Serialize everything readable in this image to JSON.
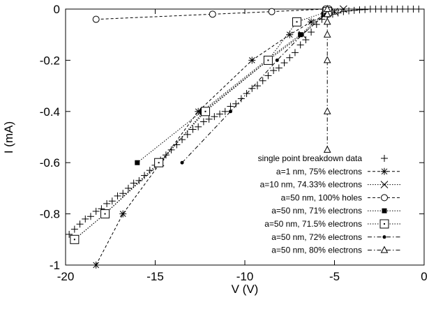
{
  "chart_data": {
    "type": "scatter",
    "xlabel": "V  (V)",
    "ylabel": "I  (mA)",
    "xlim": [
      -20,
      0
    ],
    "ylim": [
      -1,
      0
    ],
    "xticks": [
      -20,
      -15,
      -10,
      -5,
      0
    ],
    "yticks": [
      0,
      -0.2,
      -0.4,
      -0.6,
      -0.8,
      -1
    ],
    "xtick_labels": [
      "-20",
      "-15",
      "-10",
      "-5",
      "0"
    ],
    "ytick_labels": [
      "0",
      "-0.2",
      "-0.4",
      "-0.6",
      "-0.8",
      "-1"
    ],
    "grid": false,
    "legend_position": "bottom-right",
    "series": [
      {
        "name": "single point breakdown data",
        "marker": "plus",
        "line": "none",
        "x": [
          -19.8,
          -19.5,
          -19.2,
          -18.9,
          -18.6,
          -18.3,
          -18.0,
          -17.7,
          -17.4,
          -17.1,
          -16.8,
          -16.5,
          -16.2,
          -15.9,
          -15.6,
          -15.3,
          -15.0,
          -14.7,
          -14.4,
          -14.1,
          -13.8,
          -13.5,
          -13.2,
          -12.9,
          -12.6,
          -12.3,
          -12.0,
          -11.7,
          -11.4,
          -11.1,
          -10.8,
          -10.5,
          -10.2,
          -9.9,
          -9.6,
          -9.3,
          -9.0,
          -8.7,
          -8.4,
          -8.1,
          -7.8,
          -7.5,
          -7.2,
          -6.9,
          -6.6,
          -6.3,
          -6.0,
          -5.7,
          -5.4,
          -5.1,
          -4.8,
          -4.5,
          -4.2,
          -3.9,
          -3.6,
          -3.3,
          -3.0,
          -2.7,
          -2.4,
          -2.1,
          -1.8,
          -1.5,
          -1.2,
          -0.9,
          -0.6,
          -0.3
        ],
        "y": [
          -0.88,
          -0.86,
          -0.84,
          -0.82,
          -0.81,
          -0.79,
          -0.78,
          -0.76,
          -0.75,
          -0.73,
          -0.72,
          -0.7,
          -0.68,
          -0.67,
          -0.65,
          -0.63,
          -0.61,
          -0.59,
          -0.57,
          -0.55,
          -0.53,
          -0.51,
          -0.49,
          -0.47,
          -0.46,
          -0.44,
          -0.43,
          -0.42,
          -0.41,
          -0.4,
          -0.38,
          -0.37,
          -0.35,
          -0.33,
          -0.31,
          -0.3,
          -0.28,
          -0.26,
          -0.24,
          -0.23,
          -0.21,
          -0.19,
          -0.17,
          -0.14,
          -0.12,
          -0.09,
          -0.06,
          -0.04,
          -0.03,
          -0.02,
          -0.015,
          -0.01,
          -0.007,
          -0.005,
          -0.003,
          -0.002,
          0,
          0,
          0,
          0,
          0,
          0,
          0,
          0,
          0,
          0
        ]
      },
      {
        "name": "a=1 nm, 75% electrons",
        "marker": "star",
        "line": "dashed",
        "x": [
          -18.3,
          -16.8,
          -12.6,
          -9.6,
          -7.5,
          -6.3,
          -5.4
        ],
        "y": [
          -1.0,
          -0.8,
          -0.4,
          -0.2,
          -0.1,
          -0.05,
          -0.02
        ]
      },
      {
        "name": "a=10 nm, 74.33% electrons",
        "marker": "x",
        "line": "dotted",
        "x": [
          -19.5,
          -17.8,
          -14.7,
          -12.3,
          -8.7,
          -6.8,
          -5.5,
          -5.0,
          -4.5
        ],
        "y": [
          -0.9,
          -0.8,
          -0.6,
          -0.4,
          -0.2,
          -0.1,
          -0.02,
          -0.01,
          0.0
        ]
      },
      {
        "name": "a=50 nm, 100% holes",
        "marker": "circle",
        "line": "dashed",
        "x": [
          -18.3,
          -11.8,
          -8.5,
          -5.5,
          -5.3
        ],
        "y": [
          -0.04,
          -0.02,
          -0.01,
          0.0,
          0.0
        ]
      },
      {
        "name": "a=50 nm, 71% electrons",
        "marker": "square-filled",
        "line": "dotted",
        "x": [
          -16.0,
          -12.4,
          -8.8,
          -6.9,
          -5.6
        ],
        "y": [
          -0.6,
          -0.4,
          -0.2,
          -0.1,
          -0.02
        ]
      },
      {
        "name": "a=50 nm, 71.5% electrons",
        "marker": "square-open",
        "line": "dotted",
        "x": [
          -19.5,
          -17.8,
          -14.8,
          -12.2,
          -8.7,
          -7.1,
          -5.4
        ],
        "y": [
          -0.9,
          -0.8,
          -0.6,
          -0.4,
          -0.2,
          -0.05,
          -0.01
        ]
      },
      {
        "name": "a=50 nm, 72% electrons",
        "marker": "dot",
        "line": "dashdot",
        "x": [
          -13.5,
          -10.8,
          -8.2,
          -6.8,
          -5.5
        ],
        "y": [
          -0.6,
          -0.4,
          -0.2,
          -0.1,
          -0.02
        ]
      },
      {
        "name": "a=50 nm, 80% electrons",
        "marker": "triangle",
        "line": "dashdot",
        "x": [
          -5.4,
          -5.4,
          -5.4,
          -5.4,
          -5.4,
          -5.4,
          -5.4
        ],
        "y": [
          -0.55,
          -0.4,
          -0.2,
          -0.1,
          -0.05,
          -0.02,
          0.0
        ]
      }
    ]
  }
}
